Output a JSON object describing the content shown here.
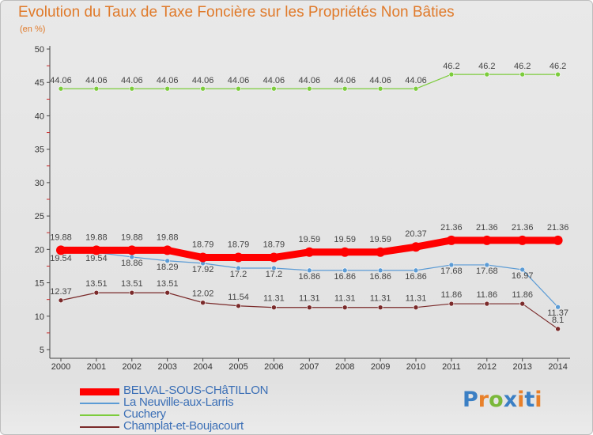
{
  "title": "Evolution du Taux de Taxe Foncière sur les Propriétés Non Bâties",
  "unit_label": "(en %)",
  "logo": {
    "text": "Proxiti",
    "letters": [
      "P",
      "r",
      "o",
      "x",
      "i",
      "t",
      "i"
    ],
    "colors": [
      "#3b7fc4",
      "#e8802a",
      "#7ab83a",
      "#3b7fc4",
      "#e8802a",
      "#3b7fc4",
      "#e8802a"
    ]
  },
  "chart_data": {
    "type": "line",
    "title": "Evolution du Taux de Taxe Foncière sur les Propriétés Non Bâties",
    "ylabel": "(en %)",
    "xlabel": "",
    "ylim": [
      5,
      50
    ],
    "yticks": [
      5,
      10,
      15,
      20,
      25,
      30,
      35,
      40,
      45,
      50
    ],
    "grid": false,
    "legend_position": "bottom-left",
    "x": [
      2000,
      2001,
      2002,
      2003,
      2004,
      2005,
      2006,
      2007,
      2008,
      2009,
      2010,
      2011,
      2012,
      2013,
      2014
    ],
    "series": [
      {
        "name": "BELVAL-SOUS-CHâTILLON",
        "color": "#ff0000",
        "values": [
          19.88,
          19.88,
          19.88,
          19.88,
          18.79,
          18.79,
          18.79,
          19.59,
          19.59,
          19.59,
          20.37,
          21.36,
          21.36,
          21.36,
          21.36
        ],
        "labels": [
          "19.88",
          "19.88",
          "19.88",
          "19.88",
          "18.79",
          "18.79",
          "18.79",
          "19.59",
          "19.59",
          "19.59",
          "20.37",
          "21.36",
          "21.36",
          "21.36",
          "21.36"
        ]
      },
      {
        "name": "La Neuville-aux-Larris",
        "color": "#5b9bd5",
        "values": [
          19.54,
          19.54,
          18.86,
          18.29,
          17.92,
          17.2,
          17.2,
          16.86,
          16.86,
          16.86,
          16.86,
          17.68,
          17.68,
          16.97,
          11.37
        ],
        "labels": [
          "19.54",
          "19.54",
          "18.86",
          "18.29",
          "17.92",
          "17.2",
          "17.2",
          "16.86",
          "16.86",
          "16.86",
          "16.86",
          "17.68",
          "17.68",
          "16.97",
          "11.37"
        ]
      },
      {
        "name": "Cuchery",
        "color": "#7ccc3c",
        "values": [
          44.06,
          44.06,
          44.06,
          44.06,
          44.06,
          44.06,
          44.06,
          44.06,
          44.06,
          44.06,
          44.06,
          46.2,
          46.2,
          46.2,
          46.2
        ],
        "labels": [
          "44.06",
          "44.06",
          "44.06",
          "44.06",
          "44.06",
          "44.06",
          "44.06",
          "44.06",
          "44.06",
          "44.06",
          "44.06",
          "46.2",
          "46.2",
          "46.2",
          "46.2"
        ]
      },
      {
        "name": "Champlat-et-Boujacourt",
        "color": "#7a2a2a",
        "values": [
          12.37,
          13.51,
          13.51,
          13.51,
          12.02,
          11.54,
          11.31,
          11.31,
          11.31,
          11.31,
          11.31,
          11.86,
          11.86,
          11.86,
          8.1
        ],
        "labels": [
          "12.37",
          "13.51",
          "13.51",
          "13.51",
          "12.02",
          "11.54",
          "11.31",
          "11.31",
          "11.31",
          "11.31",
          "11.31",
          "11.86",
          "11.86",
          "11.86",
          "8.1"
        ]
      }
    ]
  }
}
